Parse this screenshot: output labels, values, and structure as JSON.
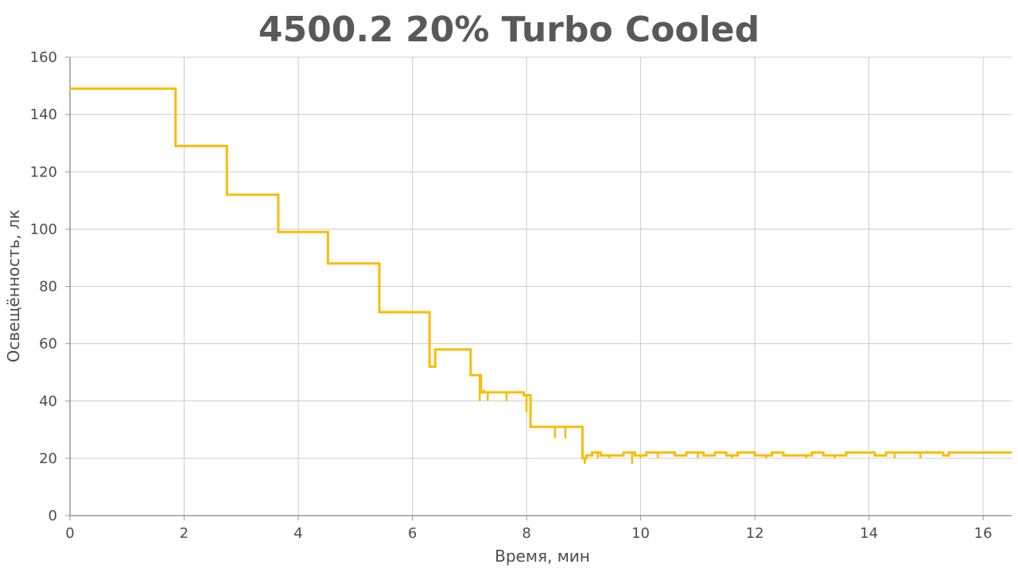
{
  "chart_data": {
    "type": "line",
    "title": "4500.2 20%  Turbo Cooled",
    "xlabel": "Время, мин",
    "ylabel": "Освещённость, лк",
    "xlim": [
      0,
      16.5
    ],
    "ylim": [
      0,
      160
    ],
    "x_ticks": [
      0,
      2,
      4,
      6,
      8,
      10,
      12,
      14,
      16
    ],
    "y_ticks": [
      0,
      20,
      40,
      60,
      80,
      100,
      120,
      140,
      160
    ],
    "grid": true,
    "legend": "none",
    "colors": {
      "line": "#FBBC05",
      "grid": "#cccccc",
      "axis": "#999999"
    },
    "series": [
      {
        "step": true,
        "points": [
          [
            0,
            149
          ],
          [
            1.85,
            129
          ],
          [
            2.75,
            112
          ],
          [
            3.65,
            99
          ],
          [
            4.52,
            88
          ],
          [
            5.42,
            71
          ],
          [
            6.3,
            52
          ],
          [
            6.4,
            58
          ],
          [
            7.02,
            49
          ],
          [
            7.2,
            43
          ],
          [
            7.95,
            42
          ],
          [
            8.07,
            31
          ],
          [
            8.98,
            20
          ],
          [
            9.05,
            21
          ],
          [
            9.15,
            22
          ],
          [
            9.3,
            21
          ],
          [
            9.5,
            21
          ],
          [
            9.7,
            22
          ],
          [
            9.9,
            21
          ],
          [
            10.1,
            22
          ],
          [
            10.6,
            21
          ],
          [
            10.8,
            22
          ],
          [
            11.1,
            21
          ],
          [
            11.3,
            22
          ],
          [
            11.5,
            21
          ],
          [
            11.7,
            22
          ],
          [
            12.0,
            21
          ],
          [
            12.3,
            22
          ],
          [
            12.5,
            21
          ],
          [
            12.8,
            21
          ],
          [
            13.0,
            22
          ],
          [
            13.2,
            21
          ],
          [
            13.5,
            21
          ],
          [
            13.6,
            22
          ],
          [
            14.1,
            21
          ],
          [
            14.3,
            22
          ],
          [
            15.3,
            21
          ],
          [
            15.4,
            22
          ],
          [
            16.5,
            22
          ]
        ],
        "dips": [
          [
            6.3,
            52
          ],
          [
            7.18,
            40
          ],
          [
            7.25,
            44
          ],
          [
            7.32,
            40
          ],
          [
            7.65,
            40
          ],
          [
            8.0,
            36
          ],
          [
            8.5,
            27
          ],
          [
            8.68,
            27
          ],
          [
            8.97,
            31
          ],
          [
            9.02,
            18
          ],
          [
            9.25,
            20
          ],
          [
            9.45,
            20
          ],
          [
            9.85,
            18
          ],
          [
            10.0,
            20
          ],
          [
            10.3,
            20
          ],
          [
            11.0,
            20
          ],
          [
            11.6,
            20
          ],
          [
            12.2,
            20
          ],
          [
            12.9,
            20
          ],
          [
            13.4,
            20
          ],
          [
            14.45,
            20
          ],
          [
            14.9,
            20
          ]
        ]
      }
    ]
  }
}
